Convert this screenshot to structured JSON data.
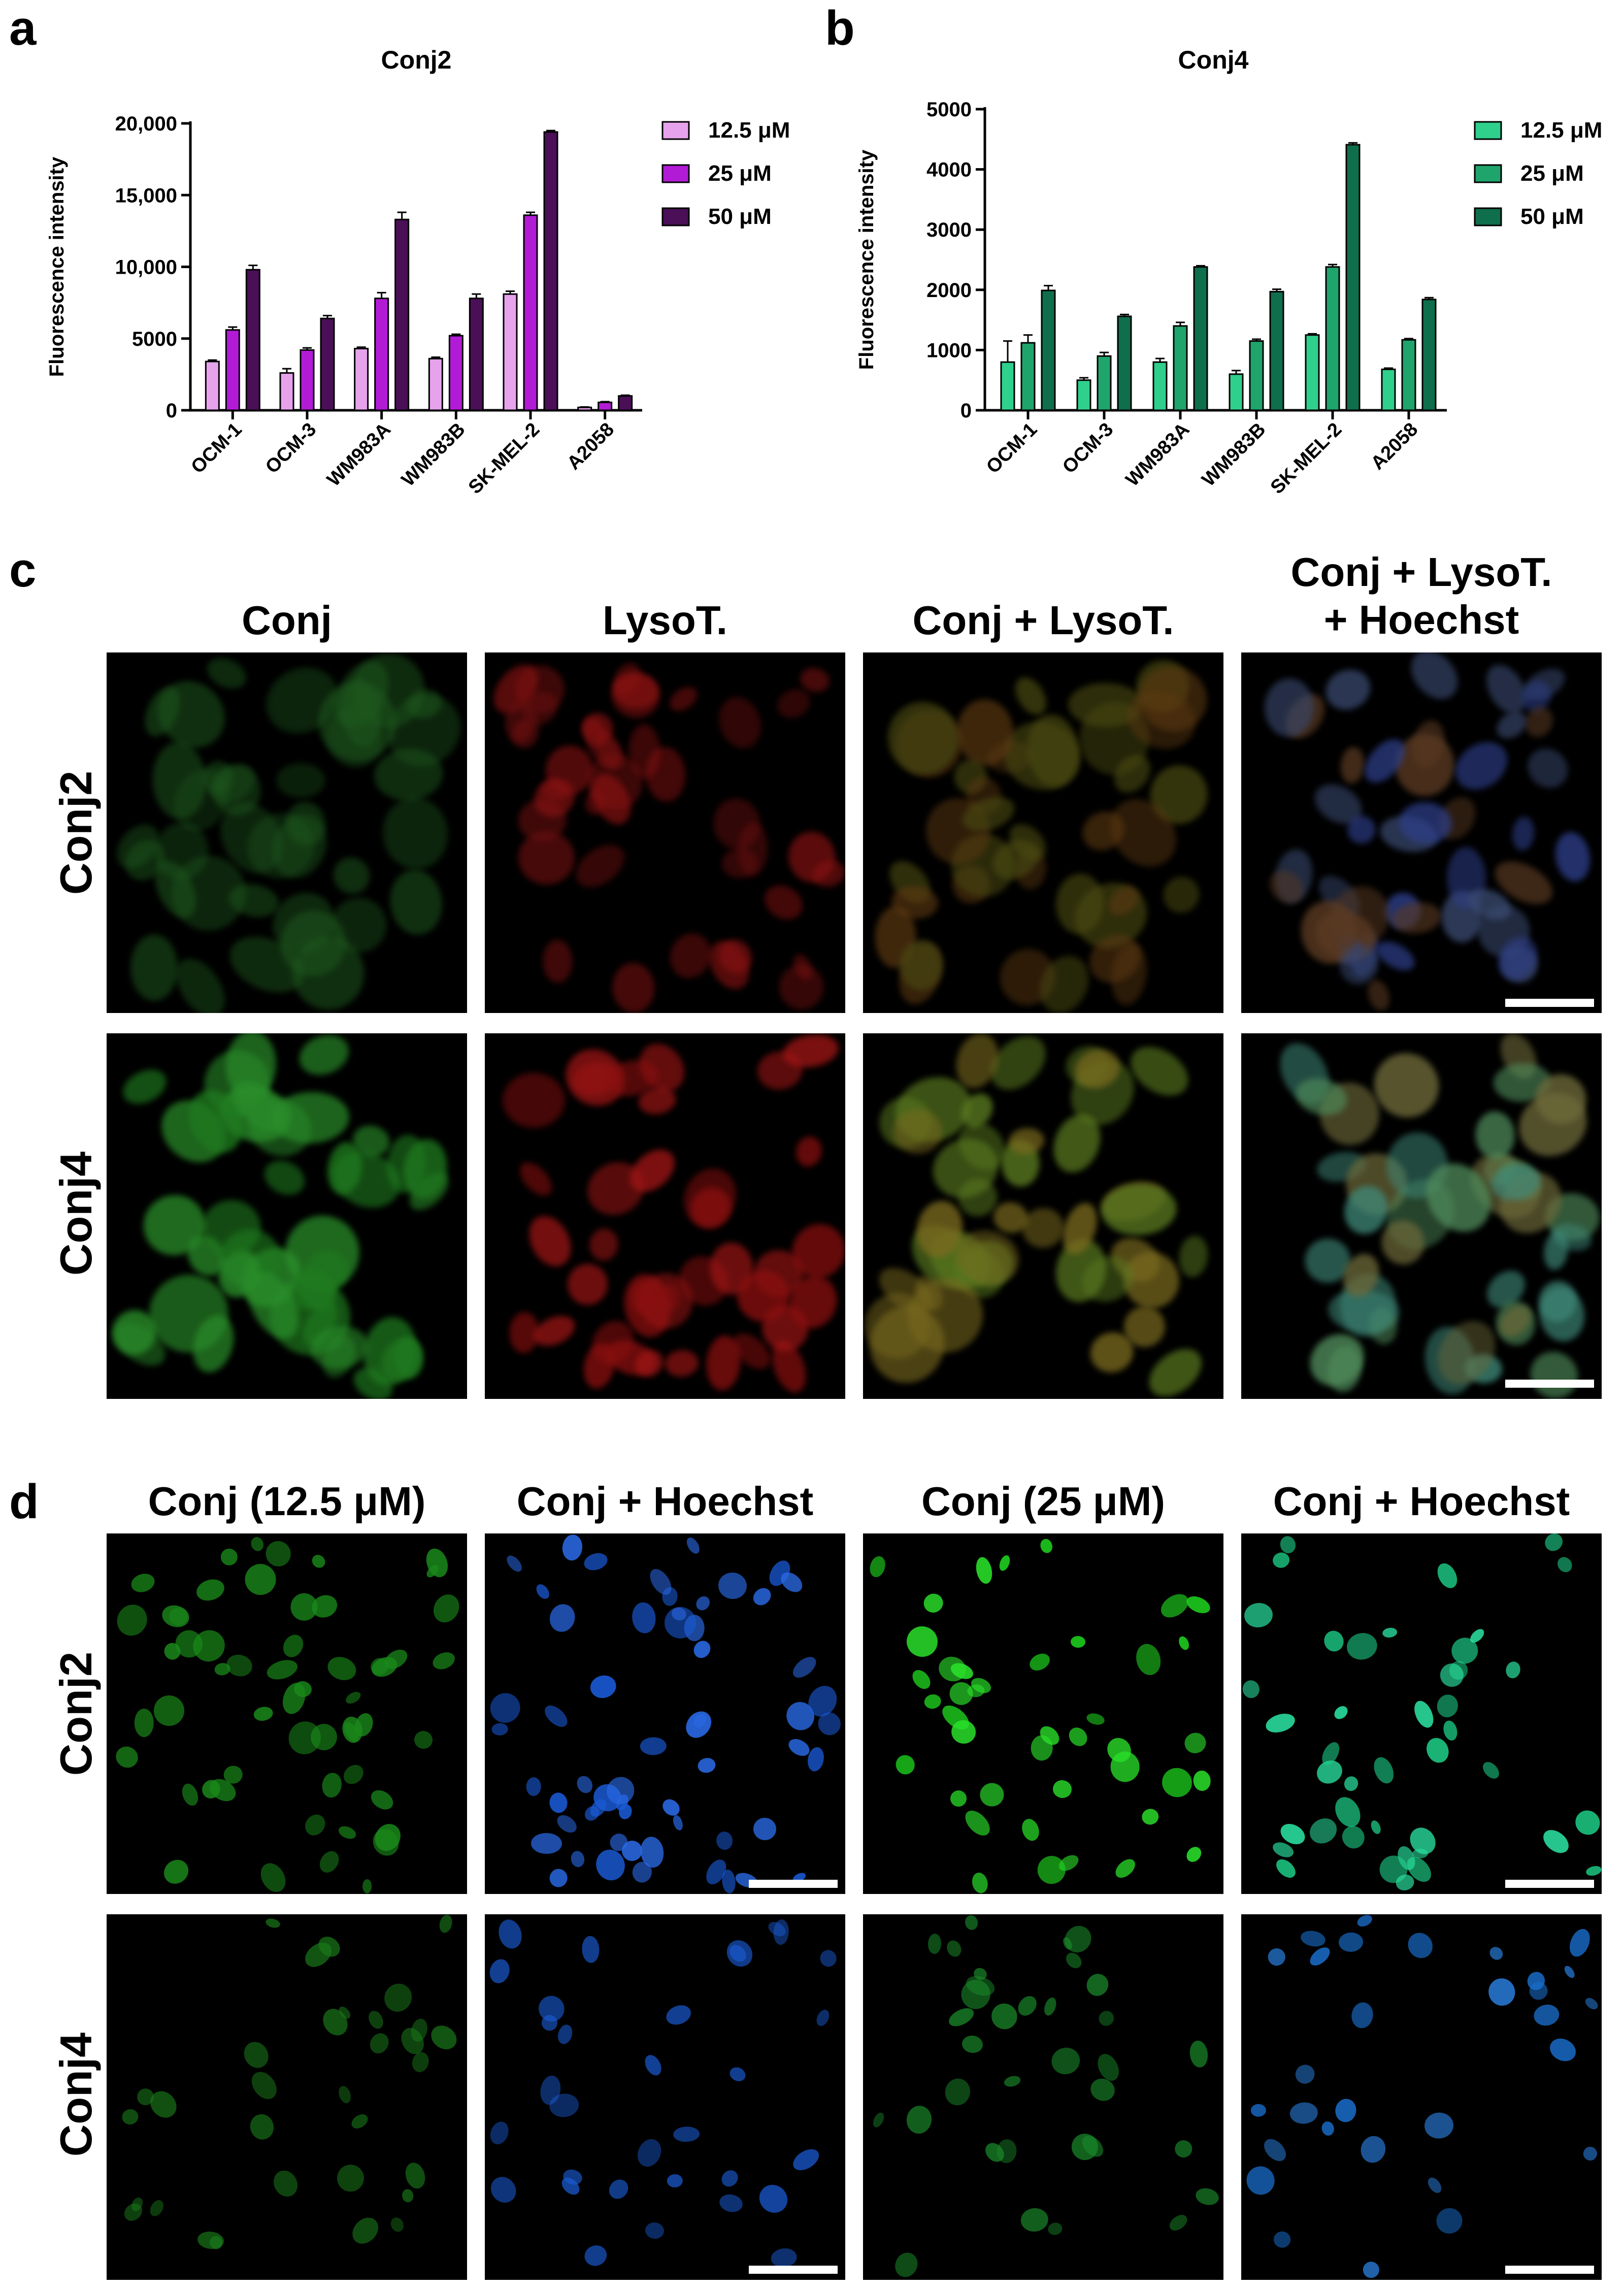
{
  "panels": {
    "a": "a",
    "b": "b",
    "c": "c",
    "d": "d"
  },
  "chart_data": [
    {
      "type": "bar",
      "title": "Conj2",
      "xlabel": "",
      "ylabel": "Fluorescence intensity",
      "ylim": [
        0,
        20000
      ],
      "yticks": [
        "0",
        "5000",
        "10,000",
        "15,000",
        "20,000"
      ],
      "ytick_values": [
        0,
        5000,
        10000,
        15000,
        20000
      ],
      "categories": [
        "OCM-1",
        "OCM-3",
        "WM983A",
        "WM983B",
        "SK-MEL-2",
        "A2058"
      ],
      "legend_position": "top-right",
      "series": [
        {
          "name": "12.5 μM",
          "color": "#e6a3ec",
          "values": [
            3400,
            2600,
            4300,
            3600,
            8100,
            200
          ],
          "errors": [
            100,
            300,
            100,
            100,
            200,
            30
          ]
        },
        {
          "name": "25 μM",
          "color": "#b21bd6",
          "values": [
            5600,
            4200,
            7800,
            5200,
            13600,
            550
          ],
          "errors": [
            200,
            150,
            400,
            100,
            200,
            50
          ]
        },
        {
          "name": "50 μM",
          "color": "#4a0f56",
          "values": [
            9800,
            6400,
            13300,
            7800,
            19400,
            1000
          ],
          "errors": [
            300,
            200,
            500,
            300,
            100,
            50
          ]
        }
      ]
    },
    {
      "type": "bar",
      "title": "Conj4",
      "xlabel": "",
      "ylabel": "Fluorescence intensity",
      "ylim": [
        0,
        5000
      ],
      "yticks": [
        "0",
        "1000",
        "2000",
        "3000",
        "4000",
        "5000"
      ],
      "ytick_values": [
        0,
        1000,
        2000,
        3000,
        4000,
        5000
      ],
      "categories": [
        "OCM-1",
        "OCM-3",
        "WM983A",
        "WM983B",
        "SK-MEL-2",
        "A2058"
      ],
      "legend_position": "top-right",
      "series": [
        {
          "name": "12.5 μM",
          "color": "#2fd08c",
          "values": [
            800,
            500,
            800,
            600,
            1250,
            680
          ],
          "errors": [
            350,
            40,
            60,
            60,
            20,
            20
          ]
        },
        {
          "name": "25 μM",
          "color": "#1fa46c",
          "values": [
            1120,
            900,
            1400,
            1150,
            2380,
            1170
          ],
          "errors": [
            130,
            60,
            60,
            30,
            40,
            20
          ]
        },
        {
          "name": "50 μM",
          "color": "#0f6e4b",
          "values": [
            1990,
            1560,
            2380,
            1970,
            4410,
            1840
          ],
          "errors": [
            80,
            30,
            20,
            40,
            30,
            30
          ]
        }
      ]
    }
  ],
  "panel_c": {
    "columns": [
      "Conj",
      "LysoT.",
      "Conj + LysoT.",
      "Conj + LysoT.\n+ Hoechst"
    ],
    "rows": [
      "Conj2",
      "Conj4"
    ]
  },
  "panel_d": {
    "columns": [
      "Conj (12.5 μM)",
      "Conj + Hoechst",
      "Conj (25 μM)",
      "Conj + Hoechst"
    ],
    "rows": [
      "Conj2",
      "Conj4"
    ]
  }
}
